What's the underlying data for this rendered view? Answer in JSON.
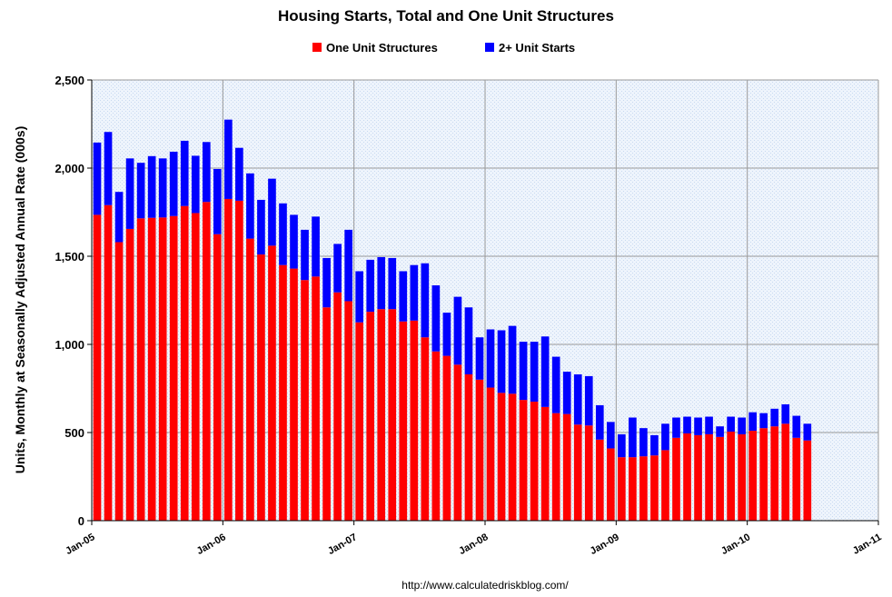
{
  "chart_data": {
    "type": "bar",
    "stacked": true,
    "title": "Housing Starts, Total and One Unit Structures",
    "ylabel": "Units, Monthly at Seasonally Adjusted Annual Rate (000s)",
    "xlabel": "",
    "ylim": [
      0,
      2500
    ],
    "yticks": [
      0,
      500,
      1000,
      1500,
      2000,
      2500
    ],
    "ytick_labels": [
      "0",
      "500",
      "1,000",
      "1,500",
      "2,000",
      "2,500"
    ],
    "xtick_labels": [
      "Jan-05",
      "Jan-06",
      "Jan-07",
      "Jan-08",
      "Jan-09",
      "Jan-10",
      "Jan-11"
    ],
    "x_start": "Jan-05",
    "x_end": "Jan-11",
    "grid": true,
    "legend_position": "top-center",
    "source": "http://www.calculatedriskblog.com/",
    "series": [
      {
        "name": "One Unit Structures",
        "color": "#ff0000",
        "values": [
          1735,
          1790,
          1580,
          1655,
          1715,
          1718,
          1720,
          1728,
          1785,
          1745,
          1808,
          1625,
          1825,
          1815,
          1600,
          1510,
          1560,
          1450,
          1430,
          1365,
          1385,
          1210,
          1295,
          1245,
          1125,
          1185,
          1200,
          1200,
          1130,
          1135,
          1040,
          960,
          935,
          885,
          830,
          800,
          755,
          725,
          720,
          685,
          675,
          645,
          610,
          605,
          545,
          540,
          460,
          410,
          360,
          360,
          365,
          370,
          400,
          470,
          495,
          485,
          490,
          475,
          505,
          490,
          510,
          525,
          535,
          550,
          470,
          455
        ]
      },
      {
        "name": "2+ Unit Starts",
        "color": "#0000ff",
        "values": [
          410,
          415,
          285,
          400,
          315,
          350,
          335,
          365,
          370,
          325,
          340,
          370,
          450,
          300,
          370,
          310,
          380,
          350,
          305,
          285,
          340,
          280,
          275,
          405,
          290,
          295,
          295,
          290,
          285,
          315,
          420,
          375,
          245,
          385,
          380,
          240,
          330,
          355,
          385,
          330,
          340,
          400,
          320,
          240,
          285,
          280,
          195,
          150,
          130,
          225,
          160,
          115,
          150,
          115,
          95,
          100,
          100,
          60,
          85,
          95,
          105,
          85,
          100,
          110,
          125,
          95
        ]
      }
    ]
  }
}
